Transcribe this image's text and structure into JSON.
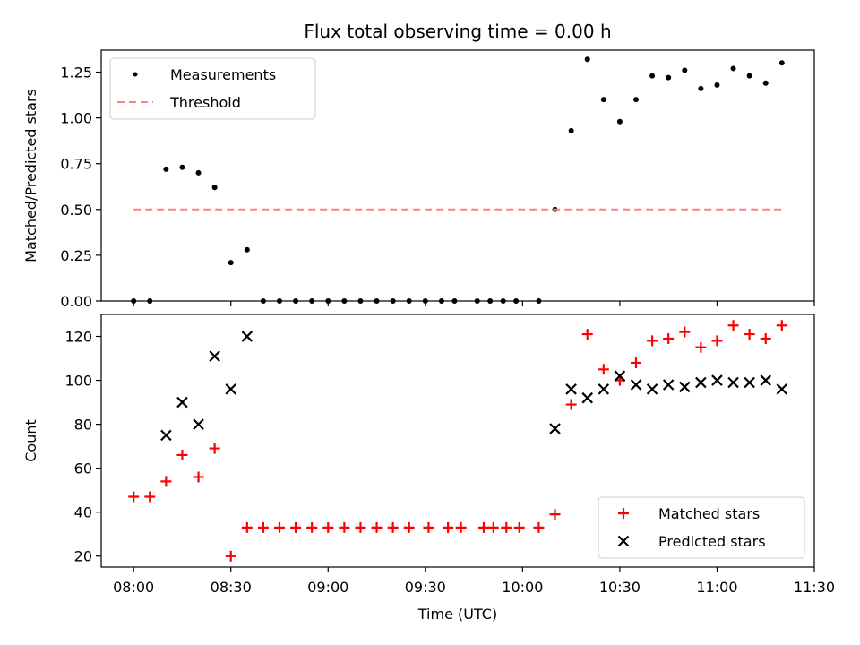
{
  "figure": {
    "title": "Flux total observing time = 0.00 h"
  },
  "chart_data": [
    {
      "type": "scatter",
      "panel": "top",
      "title": "Flux total observing time = 0.00 h",
      "xlabel": "",
      "ylabel": "Matched/Predicted stars",
      "x_axis": "time",
      "xlim": [
        "07:50",
        "11:30"
      ],
      "ylim": [
        0,
        1.37
      ],
      "yticks": [
        "0.00",
        "0.25",
        "0.50",
        "0.75",
        "1.00",
        "1.25"
      ],
      "ytick_values": [
        0,
        0.25,
        0.5,
        0.75,
        1.0,
        1.25
      ],
      "legend": "top-left",
      "series": [
        {
          "name": "Measurements",
          "style": "dot",
          "color": "#000000",
          "points": [
            [
              "08:00",
              0
            ],
            [
              "08:05",
              0
            ],
            [
              "08:10",
              0.72
            ],
            [
              "08:15",
              0.73
            ],
            [
              "08:20",
              0.7
            ],
            [
              "08:25",
              0.62
            ],
            [
              "08:30",
              0.21
            ],
            [
              "08:35",
              0.28
            ],
            [
              "08:40",
              0
            ],
            [
              "08:45",
              0
            ],
            [
              "08:50",
              0
            ],
            [
              "08:55",
              0
            ],
            [
              "09:00",
              0
            ],
            [
              "09:05",
              0
            ],
            [
              "09:10",
              0
            ],
            [
              "09:15",
              0
            ],
            [
              "09:20",
              0
            ],
            [
              "09:25",
              0
            ],
            [
              "09:30",
              0
            ],
            [
              "09:35",
              0
            ],
            [
              "09:39",
              0
            ],
            [
              "09:46",
              0
            ],
            [
              "09:50",
              0
            ],
            [
              "09:54",
              0
            ],
            [
              "09:58",
              0
            ],
            [
              "10:05",
              0
            ],
            [
              "10:10",
              0.5
            ],
            [
              "10:15",
              0.93
            ],
            [
              "10:20",
              1.32
            ],
            [
              "10:25",
              1.1
            ],
            [
              "10:30",
              0.98
            ],
            [
              "10:35",
              1.1
            ],
            [
              "10:40",
              1.23
            ],
            [
              "10:45",
              1.22
            ],
            [
              "10:50",
              1.26
            ],
            [
              "10:55",
              1.16
            ],
            [
              "11:00",
              1.18
            ],
            [
              "11:05",
              1.27
            ],
            [
              "11:10",
              1.23
            ],
            [
              "11:15",
              1.19
            ],
            [
              "11:20",
              1.3
            ]
          ]
        },
        {
          "name": "Threshold",
          "style": "dashed-line",
          "color": "#ff8080",
          "points": [
            [
              "08:00",
              0.5
            ],
            [
              "11:20",
              0.5
            ]
          ]
        }
      ]
    },
    {
      "type": "scatter",
      "panel": "bottom",
      "xlabel": "Time (UTC)",
      "ylabel": "Count",
      "x_axis": "time",
      "xlim": [
        "07:50",
        "11:30"
      ],
      "ylim": [
        15,
        130
      ],
      "xticks": [
        "08:00",
        "08:30",
        "09:00",
        "09:30",
        "10:00",
        "10:30",
        "11:00",
        "11:30"
      ],
      "yticks": [
        "20",
        "40",
        "60",
        "80",
        "100",
        "120"
      ],
      "ytick_values": [
        20,
        40,
        60,
        80,
        100,
        120
      ],
      "legend": "bottom-right",
      "series": [
        {
          "name": "Matched stars",
          "style": "plus",
          "color": "#ff0000",
          "points": [
            [
              "08:00",
              47
            ],
            [
              "08:05",
              47
            ],
            [
              "08:10",
              54
            ],
            [
              "08:15",
              66
            ],
            [
              "08:20",
              56
            ],
            [
              "08:25",
              69
            ],
            [
              "08:30",
              20
            ],
            [
              "08:35",
              33
            ],
            [
              "08:40",
              33
            ],
            [
              "08:45",
              33
            ],
            [
              "08:50",
              33
            ],
            [
              "08:55",
              33
            ],
            [
              "09:00",
              33
            ],
            [
              "09:05",
              33
            ],
            [
              "09:10",
              33
            ],
            [
              "09:15",
              33
            ],
            [
              "09:20",
              33
            ],
            [
              "09:25",
              33
            ],
            [
              "09:31",
              33
            ],
            [
              "09:37",
              33
            ],
            [
              "09:41",
              33
            ],
            [
              "09:48",
              33
            ],
            [
              "09:51",
              33
            ],
            [
              "09:55",
              33
            ],
            [
              "09:59",
              33
            ],
            [
              "10:05",
              33
            ],
            [
              "10:10",
              39
            ],
            [
              "10:15",
              89
            ],
            [
              "10:20",
              121
            ],
            [
              "10:25",
              105
            ],
            [
              "10:30",
              100
            ],
            [
              "10:35",
              108
            ],
            [
              "10:40",
              118
            ],
            [
              "10:45",
              119
            ],
            [
              "10:50",
              122
            ],
            [
              "10:55",
              115
            ],
            [
              "11:00",
              118
            ],
            [
              "11:05",
              125
            ],
            [
              "11:10",
              121
            ],
            [
              "11:15",
              119
            ],
            [
              "11:20",
              125
            ]
          ]
        },
        {
          "name": "Predicted stars",
          "style": "x",
          "color": "#000000",
          "points": [
            [
              "08:10",
              75
            ],
            [
              "08:15",
              90
            ],
            [
              "08:20",
              80
            ],
            [
              "08:25",
              111
            ],
            [
              "08:30",
              96
            ],
            [
              "08:35",
              120
            ],
            [
              "10:10",
              78
            ],
            [
              "10:15",
              96
            ],
            [
              "10:20",
              92
            ],
            [
              "10:25",
              96
            ],
            [
              "10:30",
              102
            ],
            [
              "10:35",
              98
            ],
            [
              "10:40",
              96
            ],
            [
              "10:45",
              98
            ],
            [
              "10:50",
              97
            ],
            [
              "10:55",
              99
            ],
            [
              "11:00",
              100
            ],
            [
              "11:05",
              99
            ],
            [
              "11:10",
              99
            ],
            [
              "11:15",
              100
            ],
            [
              "11:20",
              96
            ]
          ]
        }
      ]
    }
  ]
}
